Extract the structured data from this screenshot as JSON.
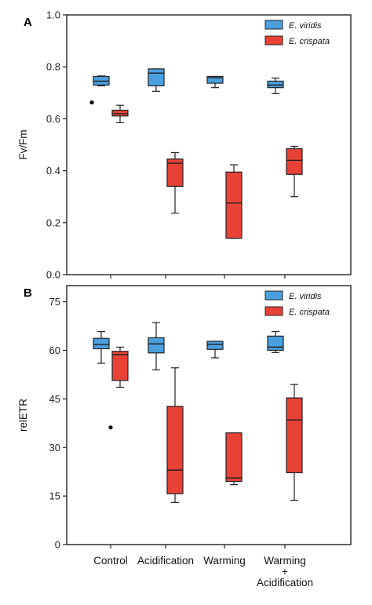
{
  "colors": {
    "viridis": "#4a9fdf",
    "crispata": "#e84236",
    "stroke": "#222222"
  },
  "chart_data": [
    {
      "type": "box",
      "panel_label": "A",
      "ylabel": "Fv/Fm",
      "ylim": [
        0,
        1.0
      ],
      "yticks": [
        0.0,
        0.2,
        0.4,
        0.6,
        0.8,
        1.0
      ],
      "ytick_labels": [
        "0.0",
        "0.2",
        "0.4",
        "0.6",
        "0.8",
        "1.0"
      ],
      "legend_position": "top-right",
      "categories": [
        "Control",
        "Acidification",
        "Warming",
        "Warming\n+\nAcidification"
      ],
      "series": [
        {
          "name": "E. viridis",
          "boxes": [
            {
              "min": 0.727,
              "q1": 0.73,
              "median": 0.745,
              "q3": 0.763,
              "max": 0.765,
              "outliers": [
                0.663
              ]
            },
            {
              "min": 0.706,
              "q1": 0.727,
              "median": 0.776,
              "q3": 0.792,
              "max": 0.792,
              "outliers": []
            },
            {
              "min": 0.72,
              "q1": 0.737,
              "median": 0.758,
              "q3": 0.763,
              "max": 0.763,
              "outliers": []
            },
            {
              "min": 0.697,
              "q1": 0.72,
              "median": 0.73,
              "q3": 0.745,
              "max": 0.757,
              "outliers": []
            }
          ]
        },
        {
          "name": "E. crispata",
          "boxes": [
            {
              "min": 0.585,
              "q1": 0.611,
              "median": 0.62,
              "q3": 0.633,
              "max": 0.652,
              "outliers": []
            },
            {
              "min": 0.237,
              "q1": 0.34,
              "median": 0.429,
              "q3": 0.445,
              "max": 0.47,
              "outliers": []
            },
            {
              "min": 0.14,
              "q1": 0.14,
              "median": 0.276,
              "q3": 0.395,
              "max": 0.423,
              "outliers": []
            },
            {
              "min": 0.3,
              "q1": 0.386,
              "median": 0.44,
              "q3": 0.485,
              "max": 0.494,
              "outliers": []
            }
          ]
        }
      ]
    },
    {
      "type": "box",
      "panel_label": "B",
      "ylabel": "relETR",
      "ylim": [
        0,
        80
      ],
      "yticks": [
        0,
        15,
        30,
        45,
        60,
        75
      ],
      "ytick_labels": [
        "0",
        "15",
        "30",
        "45",
        "60",
        "75"
      ],
      "legend_position": "top-right",
      "categories": [
        "Control",
        "Acidification",
        "Warming",
        "Warming\n+\nAcidification"
      ],
      "series": [
        {
          "name": "E. viridis",
          "boxes": [
            {
              "min": 56.0,
              "q1": 60.5,
              "median": 61.8,
              "q3": 63.7,
              "max": 65.8,
              "outliers": []
            },
            {
              "min": 54.0,
              "q1": 59.2,
              "median": 62.0,
              "q3": 63.9,
              "max": 68.6,
              "outliers": []
            },
            {
              "min": 57.7,
              "q1": 60.3,
              "median": 61.9,
              "q3": 62.8,
              "max": 62.8,
              "outliers": []
            },
            {
              "min": 59.3,
              "q1": 60.0,
              "median": 61.0,
              "q3": 64.4,
              "max": 65.8,
              "outliers": []
            }
          ]
        },
        {
          "name": "E. crispata",
          "boxes": [
            {
              "min": 48.6,
              "q1": 50.7,
              "median": 58.7,
              "q3": 59.7,
              "max": 61.0,
              "outliers": [
                36.2
              ]
            },
            {
              "min": 13.0,
              "q1": 15.7,
              "median": 23.0,
              "q3": 42.7,
              "max": 54.6,
              "outliers": []
            },
            {
              "min": 18.5,
              "q1": 19.5,
              "median": 20.6,
              "q3": 34.5,
              "max": 34.5,
              "outliers": []
            },
            {
              "min": 13.7,
              "q1": 22.2,
              "median": 38.5,
              "q3": 45.3,
              "max": 49.5,
              "outliers": []
            }
          ]
        }
      ]
    }
  ]
}
